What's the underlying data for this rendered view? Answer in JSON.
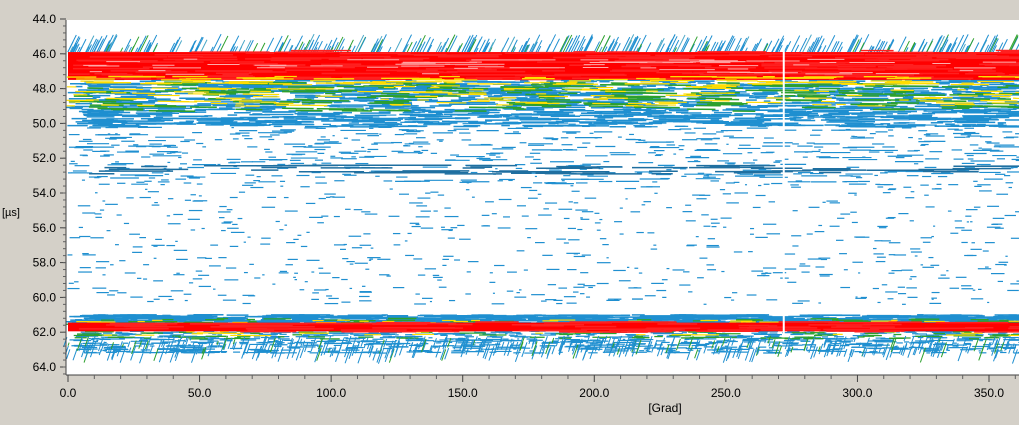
{
  "chart_data": {
    "type": "heatmap",
    "title": "",
    "xlabel": "[Grad]",
    "ylabel": "[µs]",
    "xlim": [
      0,
      360
    ],
    "ylim": [
      44.0,
      64.6
    ],
    "y_inverted": true,
    "x_ticks": [
      "0.0",
      "50.0",
      "100.0",
      "150.0",
      "200.0",
      "250.0",
      "300.0",
      "350.0"
    ],
    "x_tick_values": [
      0,
      50,
      100,
      150,
      200,
      250,
      300,
      350
    ],
    "y_ticks": [
      "44.0",
      "46.0",
      "48.0",
      "50.0",
      "52.0",
      "54.0",
      "56.0",
      "58.0",
      "60.0",
      "62.0",
      "64.0"
    ],
    "y_tick_values": [
      44,
      46,
      48,
      50,
      52,
      54,
      56,
      58,
      60,
      62,
      64
    ],
    "grid": false,
    "colormap": [
      "#ffffff",
      "#1f77b4",
      "#2ca02c",
      "#ffdd00",
      "#ff0000"
    ],
    "bands": [
      {
        "y_from": 45.9,
        "y_to": 47.3,
        "intensity": "high",
        "color": "#ff0000"
      },
      {
        "y_from": 47.3,
        "y_to": 49.5,
        "intensity": "medium",
        "color": "#1f8fd0"
      },
      {
        "y_from": 61.4,
        "y_to": 61.9,
        "intensity": "high",
        "color": "#ff0000"
      },
      {
        "y_from": 61.0,
        "y_to": 62.9,
        "intensity": "medium",
        "color": "#1f8fd0"
      }
    ],
    "marker_x": 272
  }
}
